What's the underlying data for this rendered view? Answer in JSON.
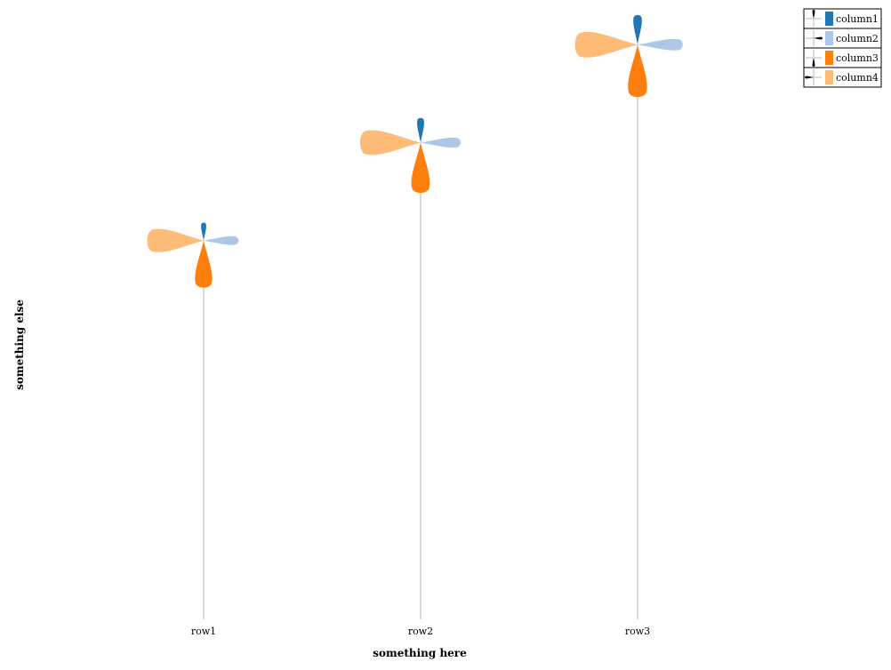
{
  "chart_data": {
    "type": "flower",
    "xlabel": "something here",
    "ylabel": "something else",
    "categories": [
      "row1",
      "row2",
      "row3"
    ],
    "stem_height": [
      1.47,
      1.85,
      2.23
    ],
    "series": [
      {
        "name": "column1",
        "color": "#1f77b4",
        "values": [
          0.35,
          0.48,
          0.58
        ]
      },
      {
        "name": "column2",
        "color": "#aec7e8",
        "values": [
          0.68,
          0.78,
          0.88
        ]
      },
      {
        "name": "column3",
        "color": "#ff7f0e",
        "values": [
          0.92,
          0.98,
          1.02
        ]
      },
      {
        "name": "column4",
        "color": "#ffbb78",
        "values": [
          1.1,
          1.18,
          1.22
        ]
      }
    ],
    "legend_position": "top-right",
    "grid": false
  }
}
